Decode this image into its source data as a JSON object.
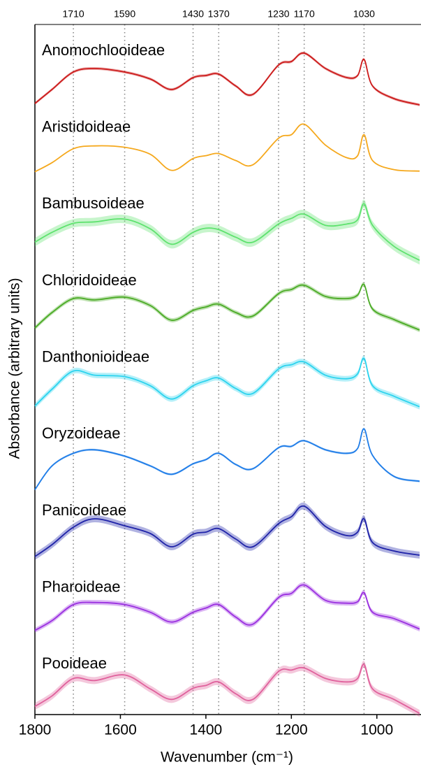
{
  "chart_data": {
    "type": "line",
    "xlabel": "Wavenumber (cm⁻¹)",
    "ylabel": "Absorbance (arbitrary units)",
    "xlim": [
      1800,
      900
    ],
    "xticks": [
      1800,
      1600,
      1400,
      1200,
      1000
    ],
    "xticks_top": [
      1710,
      1590,
      1430,
      1370,
      1230,
      1170,
      1030
    ],
    "x": [
      1800,
      1760,
      1710,
      1660,
      1590,
      1530,
      1480,
      1430,
      1400,
      1370,
      1330,
      1290,
      1230,
      1200,
      1170,
      1120,
      1070,
      1045,
      1030,
      1010,
      960,
      900
    ],
    "series": [
      {
        "name": "Anomochlooideae",
        "color": "#cc1a1a",
        "spread": 0.02,
        "values": [
          0.05,
          0.25,
          0.5,
          0.55,
          0.5,
          0.4,
          0.25,
          0.42,
          0.45,
          0.47,
          0.3,
          0.18,
          0.6,
          0.65,
          0.77,
          0.55,
          0.42,
          0.45,
          0.68,
          0.3,
          0.12,
          0.03
        ]
      },
      {
        "name": "Aristidoideae",
        "color": "#f5a81c",
        "spread": 0.005,
        "values": [
          0.17,
          0.3,
          0.5,
          0.54,
          0.52,
          0.42,
          0.19,
          0.36,
          0.4,
          0.43,
          0.33,
          0.27,
          0.65,
          0.7,
          0.85,
          0.55,
          0.37,
          0.4,
          0.7,
          0.33,
          0.2,
          0.18
        ]
      },
      {
        "name": "Bambusoideae",
        "color": "#5ee26e",
        "spread": 0.06,
        "values": [
          0.26,
          0.4,
          0.53,
          0.55,
          0.59,
          0.45,
          0.23,
          0.4,
          0.46,
          0.44,
          0.33,
          0.26,
          0.52,
          0.6,
          0.66,
          0.5,
          0.52,
          0.58,
          0.81,
          0.5,
          0.2,
          0.0
        ]
      },
      {
        "name": "Chloridoideae",
        "color": "#4aab25",
        "spread": 0.03,
        "values": [
          0.13,
          0.35,
          0.55,
          0.53,
          0.57,
          0.45,
          0.24,
          0.38,
          0.43,
          0.47,
          0.35,
          0.3,
          0.62,
          0.68,
          0.74,
          0.58,
          0.55,
          0.6,
          0.75,
          0.4,
          0.25,
          0.1
        ]
      },
      {
        "name": "Danthonioideae",
        "color": "#2bd3ee",
        "spread": 0.04,
        "values": [
          0.11,
          0.35,
          0.61,
          0.55,
          0.53,
          0.4,
          0.21,
          0.4,
          0.47,
          0.51,
          0.36,
          0.29,
          0.64,
          0.7,
          0.74,
          0.55,
          0.5,
          0.57,
          0.79,
          0.4,
          0.25,
          0.1
        ]
      },
      {
        "name": "Oryzoideae",
        "color": "#1f7de8",
        "spread": 0.015,
        "values": [
          0.01,
          0.35,
          0.53,
          0.58,
          0.49,
          0.35,
          0.23,
          0.38,
          0.44,
          0.53,
          0.37,
          0.31,
          0.61,
          0.63,
          0.71,
          0.58,
          0.53,
          0.6,
          0.88,
          0.5,
          0.2,
          0.13
        ]
      },
      {
        "name": "Panicoideae",
        "color": "#1e22a8",
        "spread": 0.05,
        "values": [
          0.15,
          0.32,
          0.57,
          0.69,
          0.59,
          0.48,
          0.29,
          0.47,
          0.5,
          0.55,
          0.4,
          0.29,
          0.62,
          0.72,
          0.87,
          0.58,
          0.45,
          0.5,
          0.69,
          0.35,
          0.23,
          0.17
        ]
      },
      {
        "name": "Pharoideae",
        "color": "#9a2fe0",
        "spread": 0.035,
        "values": [
          0.19,
          0.33,
          0.56,
          0.59,
          0.56,
          0.45,
          0.31,
          0.45,
          0.51,
          0.56,
          0.38,
          0.28,
          0.66,
          0.72,
          0.84,
          0.62,
          0.58,
          0.6,
          0.73,
          0.45,
          0.36,
          0.21
        ]
      },
      {
        "name": "Pooideae",
        "color": "#e0609c",
        "spread": 0.05,
        "values": [
          0.2,
          0.35,
          0.6,
          0.57,
          0.65,
          0.45,
          0.3,
          0.46,
          0.5,
          0.55,
          0.38,
          0.3,
          0.7,
          0.72,
          0.75,
          0.6,
          0.55,
          0.6,
          0.8,
          0.45,
          0.3,
          0.1
        ]
      }
    ]
  }
}
